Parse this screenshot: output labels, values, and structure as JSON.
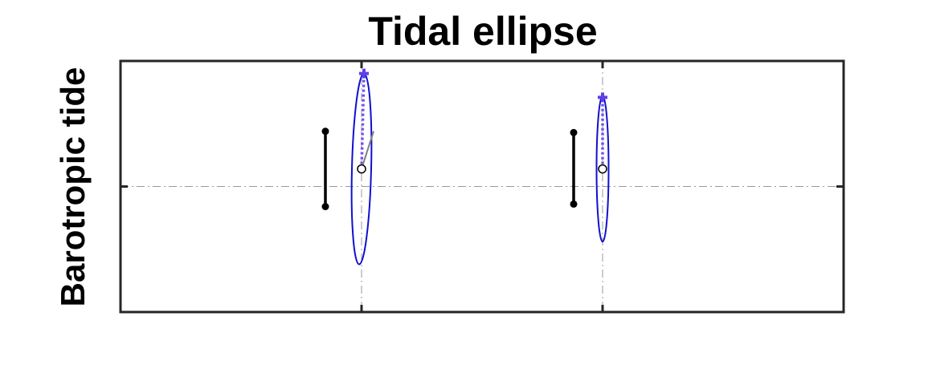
{
  "chart_data": {
    "type": "scatter",
    "title": "Tidal ellipse",
    "xlabel": "",
    "ylabel": "Barotropic tide",
    "xlim": [
      0,
      3
    ],
    "ylim": [
      -1,
      1
    ],
    "xticks": [
      1,
      2
    ],
    "yticks": [
      0
    ],
    "tick_labels_shown": false,
    "grid": "dash-dot lines through x=1, x=2 and y=0",
    "colors": {
      "ellipse": "#1010d0",
      "major_axis_line": "#7050f0",
      "marker": "#6040e8",
      "scale_bar": "#000000",
      "current_vector": "#808080",
      "center_circle": "#000000",
      "grid": "#999999",
      "axes": "#262626"
    },
    "ellipses": [
      {
        "center": [
          1.0,
          0.14
        ],
        "semi_major": 0.76,
        "semi_minor": 0.04,
        "tip": [
          1.01,
          0.9
        ],
        "vector_end": [
          1.05,
          0.44
        ],
        "scale_bar": {
          "x": 0.85,
          "y_range": [
            -0.16,
            0.44
          ]
        }
      },
      {
        "center": [
          2.0,
          0.14
        ],
        "semi_major": 0.58,
        "semi_minor": 0.025,
        "tip": [
          2.0,
          0.71
        ],
        "vector_end": [
          2.0,
          0.14
        ],
        "scale_bar": {
          "x": 1.88,
          "y_range": [
            -0.14,
            0.43
          ]
        }
      }
    ]
  }
}
